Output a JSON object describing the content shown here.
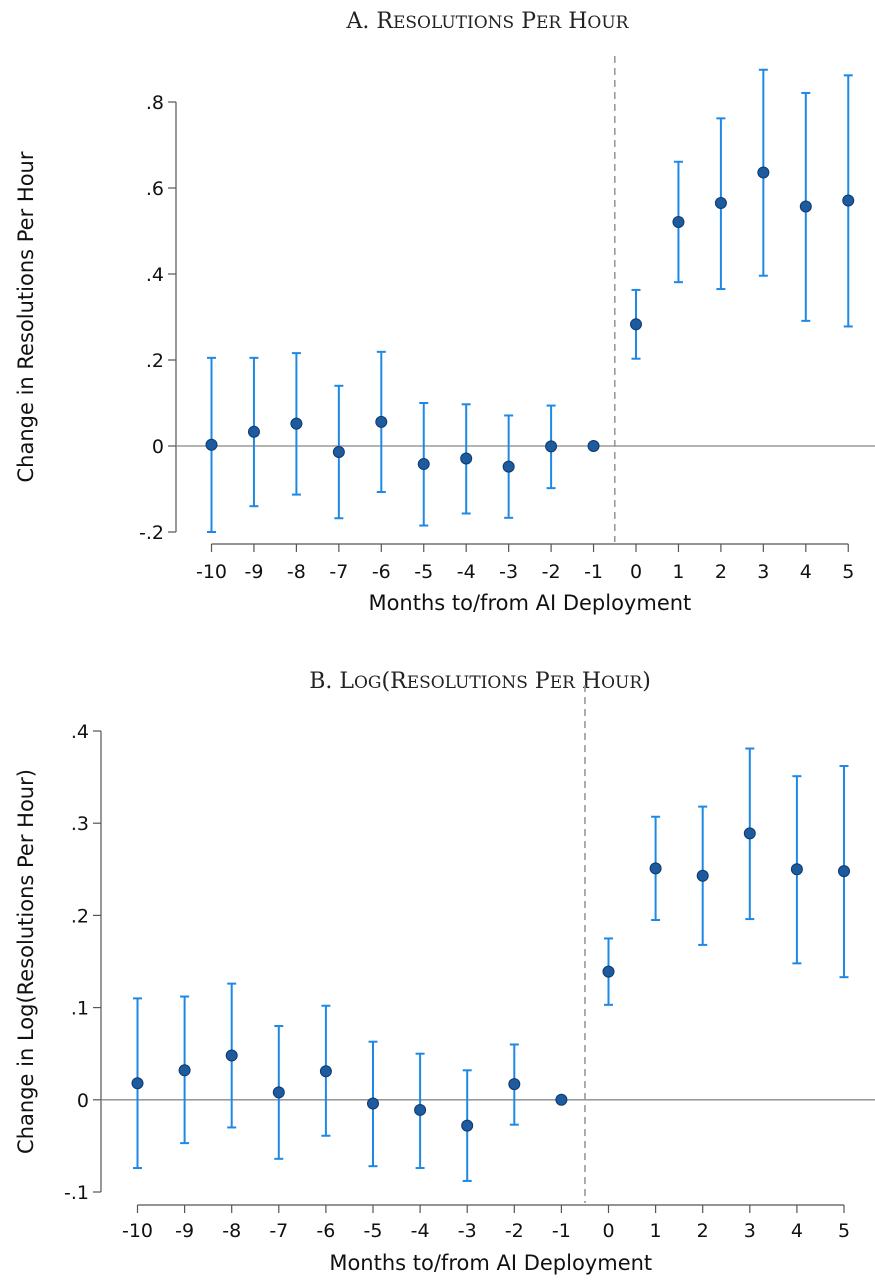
{
  "chart_data": [
    {
      "type": "scatter",
      "panel_title": "A. Resolutions Per Hour",
      "xlabel": "Months to/from AI Deployment",
      "ylabel": "Change in Resolutions Per Hour",
      "x": [
        -10,
        -9,
        -8,
        -7,
        -6,
        -5,
        -4,
        -3,
        -2,
        -1,
        0,
        1,
        2,
        3,
        4,
        5
      ],
      "x_tick_labels": [
        "-10",
        "-9",
        "-8",
        "-7",
        "-6",
        "-5",
        "-4",
        "-3",
        "-2",
        "-1",
        "0",
        "1",
        "2",
        "3",
        "4",
        "5"
      ],
      "y": [
        0.003,
        0.033,
        0.052,
        -0.014,
        0.056,
        -0.042,
        -0.029,
        -0.048,
        -0.001,
        0.0,
        0.283,
        0.521,
        0.565,
        0.636,
        0.557,
        0.571
      ],
      "ci_low": [
        -0.2,
        -0.14,
        -0.113,
        -0.168,
        -0.107,
        -0.185,
        -0.157,
        -0.167,
        -0.098,
        0.0,
        0.203,
        0.381,
        0.365,
        0.396,
        0.291,
        0.278
      ],
      "ci_high": [
        0.205,
        0.205,
        0.216,
        0.14,
        0.219,
        0.1,
        0.097,
        0.071,
        0.094,
        0.0,
        0.363,
        0.661,
        0.762,
        0.875,
        0.821,
        0.862
      ],
      "y_ticks": [
        -0.2,
        0,
        0.2,
        0.4,
        0.6,
        0.8
      ],
      "y_tick_labels": [
        "-.2",
        "0",
        ".2",
        ".4",
        ".6",
        ".8"
      ],
      "ylim": [
        -0.2,
        0.8
      ],
      "reference_line_x": -0.5,
      "reference_line_y": 0,
      "grid": false,
      "colors": {
        "marker": "#1d5a9e",
        "ci": "#1e88e5",
        "zero_line": "#888888",
        "ref_line": "#999999"
      }
    },
    {
      "type": "scatter",
      "panel_title": "B. Log(Resolutions Per Hour)",
      "xlabel": "Months to/from AI Deployment",
      "ylabel": "Change in Log(Resolutions Per Hour)",
      "x": [
        -10,
        -9,
        -8,
        -7,
        -6,
        -5,
        -4,
        -3,
        -2,
        -1,
        0,
        1,
        2,
        3,
        4,
        5
      ],
      "x_tick_labels": [
        "-10",
        "-9",
        "-8",
        "-7",
        "-6",
        "-5",
        "-4",
        "-3",
        "-2",
        "-1",
        "0",
        "1",
        "2",
        "3",
        "4",
        "5"
      ],
      "y": [
        0.018,
        0.032,
        0.048,
        0.008,
        0.031,
        -0.004,
        -0.011,
        -0.028,
        0.017,
        0.0,
        0.139,
        0.251,
        0.243,
        0.289,
        0.25,
        0.248
      ],
      "ci_low": [
        -0.074,
        -0.047,
        -0.03,
        -0.064,
        -0.039,
        -0.072,
        -0.074,
        -0.088,
        -0.027,
        0.0,
        0.103,
        0.195,
        0.168,
        0.196,
        0.148,
        0.133
      ],
      "ci_high": [
        0.11,
        0.112,
        0.126,
        0.08,
        0.102,
        0.063,
        0.05,
        0.032,
        0.06,
        0.0,
        0.175,
        0.307,
        0.318,
        0.381,
        0.351,
        0.362
      ],
      "y_ticks": [
        -0.1,
        0,
        0.1,
        0.2,
        0.3,
        0.4
      ],
      "y_tick_labels": [
        "-.1",
        "0",
        ".1",
        ".2",
        ".3",
        ".4"
      ],
      "ylim": [
        -0.1,
        0.4
      ],
      "reference_line_x": -0.5,
      "reference_line_y": 0,
      "grid": false,
      "colors": {
        "marker": "#1d5a9e",
        "ci": "#1e88e5",
        "zero_line": "#888888",
        "ref_line": "#999999"
      }
    }
  ]
}
